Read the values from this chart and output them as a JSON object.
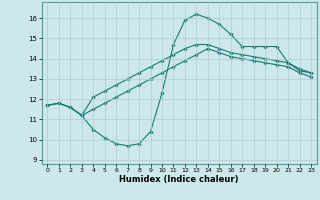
{
  "xlabel": "Humidex (Indice chaleur)",
  "background_color": "#cde8ec",
  "grid_color": "#aacdd4",
  "line_color": "#1a7a6e",
  "xlim": [
    -0.5,
    23.5
  ],
  "ylim": [
    8.8,
    16.8
  ],
  "yticks": [
    9,
    10,
    11,
    12,
    13,
    14,
    15,
    16
  ],
  "xticks": [
    0,
    1,
    2,
    3,
    4,
    5,
    6,
    7,
    8,
    9,
    10,
    11,
    12,
    13,
    14,
    15,
    16,
    17,
    18,
    19,
    20,
    21,
    22,
    23
  ],
  "series": [
    [
      11.7,
      11.8,
      11.6,
      11.2,
      10.5,
      10.1,
      9.8,
      9.7,
      9.8,
      10.4,
      12.3,
      14.7,
      15.9,
      16.2,
      16.0,
      15.7,
      15.2,
      14.6,
      14.6,
      14.6,
      14.6,
      13.8,
      13.4,
      13.3
    ],
    [
      11.7,
      11.8,
      11.6,
      11.2,
      12.1,
      12.4,
      12.7,
      13.0,
      13.3,
      13.6,
      13.9,
      14.2,
      14.5,
      14.7,
      14.7,
      14.5,
      14.3,
      14.2,
      14.1,
      14.0,
      13.9,
      13.8,
      13.5,
      13.3
    ],
    [
      11.7,
      11.8,
      11.6,
      11.2,
      11.5,
      11.8,
      12.1,
      12.4,
      12.7,
      13.0,
      13.3,
      13.6,
      13.9,
      14.2,
      14.5,
      14.3,
      14.1,
      14.0,
      13.9,
      13.8,
      13.7,
      13.6,
      13.3,
      13.1
    ]
  ]
}
